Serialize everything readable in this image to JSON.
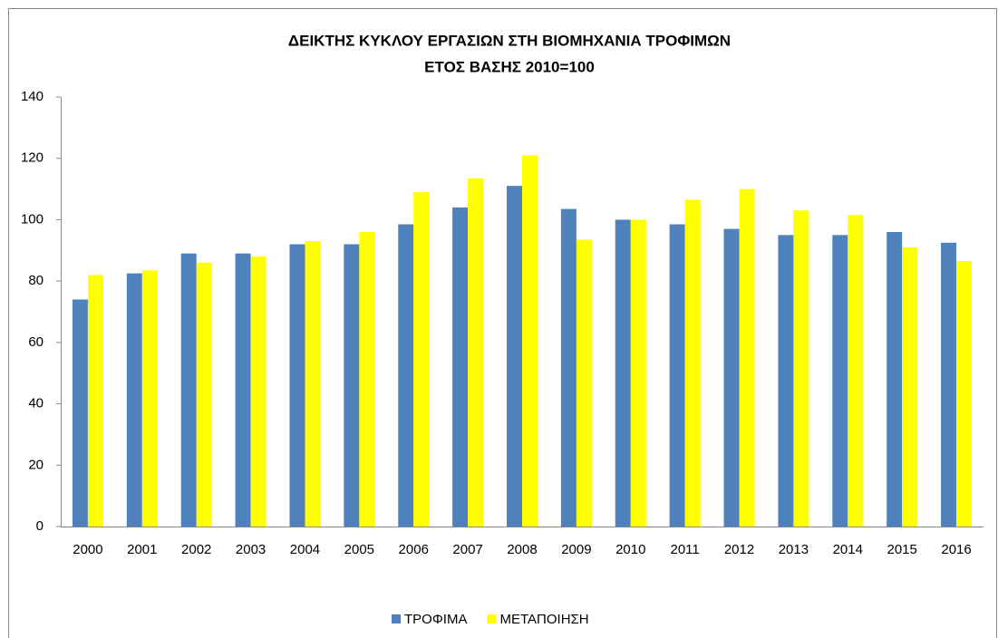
{
  "chart_data": {
    "type": "bar",
    "title": [
      "ΔΕΙΚΤΗΣ ΚΥΚΛΟΥ ΕΡΓΑΣΙΩΝ ΣΤΗ ΒΙΟΜΗΧΑΝΙΑ ΤΡΟΦΙΜΩΝ",
      "ΕΤΟΣ ΒΑΣΗΣ 2010=100"
    ],
    "categories": [
      "2000",
      "2001",
      "2002",
      "2003",
      "2004",
      "2005",
      "2006",
      "2007",
      "2008",
      "2009",
      "2010",
      "2011",
      "2012",
      "2013",
      "2014",
      "2015",
      "2016"
    ],
    "series": [
      {
        "name": "ΤΡΟΦΙΜΑ",
        "color": "#4f81bd",
        "values": [
          74,
          82.5,
          89,
          89,
          92,
          92,
          98.5,
          104,
          111,
          103.5,
          100,
          98.5,
          97,
          95,
          95,
          96,
          92.5
        ]
      },
      {
        "name": "ΜΕΤΑΠΟΙΗΣΗ",
        "color": "#ffff00",
        "values": [
          82,
          83.5,
          86,
          88,
          93,
          96,
          109,
          113.5,
          121,
          93.5,
          100,
          106.5,
          110,
          103,
          101.5,
          91,
          86.5
        ]
      }
    ],
    "ylim": [
      0,
      140
    ],
    "yticks": [
      0,
      20,
      40,
      60,
      80,
      100,
      120,
      140
    ],
    "grid": false,
    "legend": "bottom"
  }
}
